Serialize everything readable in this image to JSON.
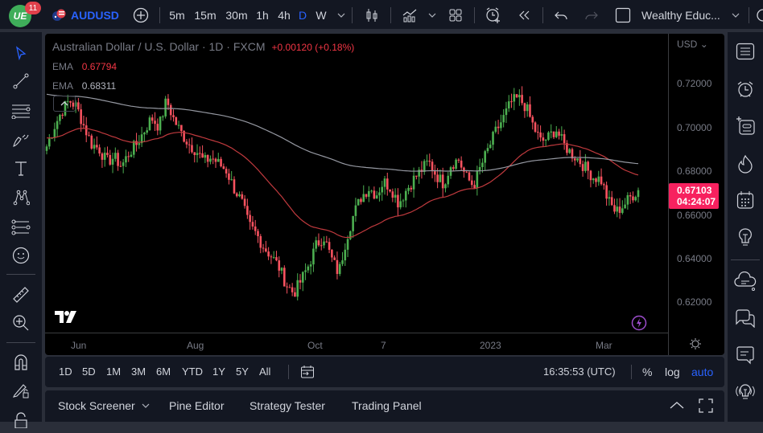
{
  "topbar": {
    "notification_count": "11",
    "symbol": "AUDUSD",
    "intervals": [
      "5m",
      "15m",
      "30m",
      "1h",
      "4h",
      "D",
      "W"
    ],
    "active_interval": "D",
    "layout_name": "Wealthy Educ..."
  },
  "chart": {
    "title": "Australian Dollar / U.S. Dollar · 1D · FXCM",
    "change": "+0.00120 (+0.18%)",
    "indicators": [
      {
        "name": "EMA",
        "value": "0.67794",
        "color": "#f23645"
      },
      {
        "name": "EMA",
        "value": "0.68311",
        "color": "#b2b5be"
      }
    ],
    "currency": "USD",
    "price_ticks": [
      "0.72000",
      "0.70000",
      "0.68000",
      "0.66000",
      "0.64000",
      "0.62000"
    ],
    "current_price": "0.67103",
    "countdown": "04:24:07",
    "time_ticks": [
      "Jun",
      "Aug",
      "Oct",
      "7",
      "2023",
      "Mar"
    ],
    "colors": {
      "up": "#4caf50",
      "down": "#f7525f",
      "ema_fast": "#c03a3e",
      "ema_slow": "#9598a1",
      "price_label": "#f7215f",
      "accent": "#2962ff"
    }
  },
  "chart_data": {
    "type": "candlestick",
    "title": "Australian Dollar / U.S. Dollar · 1D · FXCM",
    "x_ticks": [
      "Jun",
      "Aug",
      "Oct",
      "7",
      "2023",
      "Mar"
    ],
    "ylim": [
      0.61,
      0.73
    ],
    "y_ticks": [
      0.72,
      0.7,
      0.68,
      0.66,
      0.64,
      0.62
    ],
    "path_close": [
      0.691,
      0.7,
      0.707,
      0.712,
      0.709,
      0.7,
      0.692,
      0.69,
      0.684,
      0.686,
      0.682,
      0.688,
      0.692,
      0.698,
      0.704,
      0.7,
      0.712,
      0.703,
      0.697,
      0.692,
      0.689,
      0.684,
      0.686,
      0.683,
      0.68,
      0.672,
      0.666,
      0.655,
      0.651,
      0.645,
      0.641,
      0.636,
      0.628,
      0.624,
      0.63,
      0.637,
      0.646,
      0.65,
      0.64,
      0.633,
      0.649,
      0.66,
      0.668,
      0.672,
      0.669,
      0.675,
      0.672,
      0.665,
      0.671,
      0.676,
      0.68,
      0.684,
      0.678,
      0.674,
      0.683,
      0.685,
      0.677,
      0.673,
      0.682,
      0.69,
      0.698,
      0.704,
      0.711,
      0.713,
      0.709,
      0.7,
      0.693,
      0.695,
      0.699,
      0.692,
      0.688,
      0.685,
      0.681,
      0.677,
      0.676,
      0.666,
      0.661,
      0.664,
      0.668,
      0.671
    ],
    "ema_fast_last": 0.67794,
    "ema_slow_last": 0.68311,
    "last_price": 0.67103
  },
  "bottom_toolbar": {
    "ranges": [
      "1D",
      "5D",
      "1M",
      "3M",
      "6M",
      "YTD",
      "1Y",
      "5Y",
      "All"
    ],
    "clock": "16:35:53 (UTC)",
    "percent": "%",
    "log": "log",
    "auto": "auto"
  },
  "panels": {
    "tabs": [
      "Stock Screener",
      "Pine Editor",
      "Strategy Tester",
      "Trading Panel"
    ]
  }
}
